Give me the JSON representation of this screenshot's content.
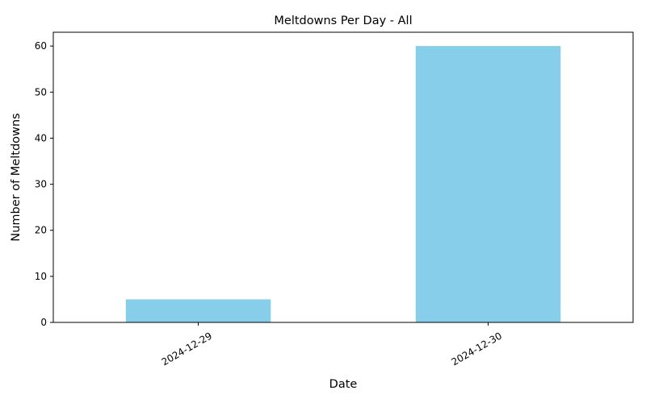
{
  "chart_data": {
    "type": "bar",
    "title": "Meltdowns Per Day - All",
    "xlabel": "Date",
    "ylabel": "Number of Meltdowns",
    "categories": [
      "2024-12-29",
      "2024-12-30"
    ],
    "values": [
      5,
      60
    ],
    "ylim": [
      0,
      63
    ],
    "yticks": [
      0,
      10,
      20,
      30,
      40,
      50,
      60
    ],
    "bar_color": "#87ceeb",
    "grid": false,
    "legend": "none"
  }
}
